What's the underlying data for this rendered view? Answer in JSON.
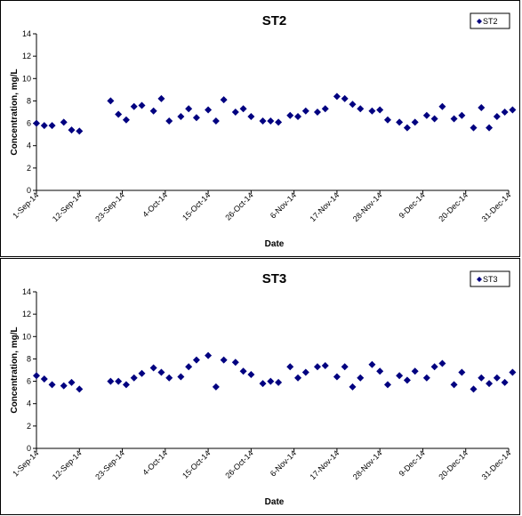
{
  "chart_data": [
    {
      "type": "scatter",
      "title": "ST2",
      "xlabel": "Date",
      "ylabel": "Concentration, mg/L",
      "x_tick_labels": [
        "1-Sep-14",
        "12-Sep-14",
        "23-Sep-14",
        "4-Oct-14",
        "15-Oct-14",
        "26-Oct-14",
        "6-Nov-14",
        "17-Nov-14",
        "28-Nov-14",
        "9-Dec-14",
        "20-Dec-14",
        "31-Dec-14"
      ],
      "xlim": [
        "2014-09-01",
        "2014-12-31"
      ],
      "ylim": [
        0,
        14
      ],
      "y_ticks": [
        0,
        2,
        4,
        6,
        8,
        10,
        12,
        14
      ],
      "legend_position": "top-right",
      "grid": false,
      "series": [
        {
          "name": "ST2",
          "color": "#000080",
          "marker": "diamond",
          "points": [
            {
              "x": "2014-09-01",
              "y": 6.0
            },
            {
              "x": "2014-09-03",
              "y": 5.8
            },
            {
              "x": "2014-09-05",
              "y": 5.8
            },
            {
              "x": "2014-09-08",
              "y": 6.1
            },
            {
              "x": "2014-09-10",
              "y": 5.4
            },
            {
              "x": "2014-09-12",
              "y": 5.3
            },
            {
              "x": "2014-09-20",
              "y": 8.0
            },
            {
              "x": "2014-09-22",
              "y": 6.8
            },
            {
              "x": "2014-09-24",
              "y": 6.3
            },
            {
              "x": "2014-09-26",
              "y": 7.5
            },
            {
              "x": "2014-09-28",
              "y": 7.6
            },
            {
              "x": "2014-10-01",
              "y": 7.1
            },
            {
              "x": "2014-10-03",
              "y": 8.2
            },
            {
              "x": "2014-10-05",
              "y": 6.2
            },
            {
              "x": "2014-10-08",
              "y": 6.6
            },
            {
              "x": "2014-10-10",
              "y": 7.3
            },
            {
              "x": "2014-10-12",
              "y": 6.5
            },
            {
              "x": "2014-10-15",
              "y": 7.2
            },
            {
              "x": "2014-10-17",
              "y": 6.2
            },
            {
              "x": "2014-10-19",
              "y": 8.1
            },
            {
              "x": "2014-10-22",
              "y": 7.0
            },
            {
              "x": "2014-10-24",
              "y": 7.3
            },
            {
              "x": "2014-10-26",
              "y": 6.6
            },
            {
              "x": "2014-10-29",
              "y": 6.2
            },
            {
              "x": "2014-10-31",
              "y": 6.2
            },
            {
              "x": "2014-11-02",
              "y": 6.1
            },
            {
              "x": "2014-11-05",
              "y": 6.7
            },
            {
              "x": "2014-11-07",
              "y": 6.6
            },
            {
              "x": "2014-11-09",
              "y": 7.1
            },
            {
              "x": "2014-11-12",
              "y": 7.0
            },
            {
              "x": "2014-11-14",
              "y": 7.3
            },
            {
              "x": "2014-11-17",
              "y": 8.4
            },
            {
              "x": "2014-11-19",
              "y": 8.2
            },
            {
              "x": "2014-11-21",
              "y": 7.7
            },
            {
              "x": "2014-11-23",
              "y": 7.3
            },
            {
              "x": "2014-11-26",
              "y": 7.1
            },
            {
              "x": "2014-11-28",
              "y": 7.2
            },
            {
              "x": "2014-11-30",
              "y": 6.3
            },
            {
              "x": "2014-12-03",
              "y": 6.1
            },
            {
              "x": "2014-12-05",
              "y": 5.6
            },
            {
              "x": "2014-12-07",
              "y": 6.1
            },
            {
              "x": "2014-12-10",
              "y": 6.7
            },
            {
              "x": "2014-12-12",
              "y": 6.4
            },
            {
              "x": "2014-12-14",
              "y": 7.5
            },
            {
              "x": "2014-12-17",
              "y": 6.4
            },
            {
              "x": "2014-12-19",
              "y": 6.7
            },
            {
              "x": "2014-12-22",
              "y": 5.6
            },
            {
              "x": "2014-12-24",
              "y": 7.4
            },
            {
              "x": "2014-12-26",
              "y": 5.6
            },
            {
              "x": "2014-12-28",
              "y": 6.6
            },
            {
              "x": "2014-12-30",
              "y": 7.0
            },
            {
              "x": "2015-01-01",
              "y": 7.2
            }
          ]
        }
      ]
    },
    {
      "type": "scatter",
      "title": "ST3",
      "xlabel": "Date",
      "ylabel": "Concentration, mg/L",
      "x_tick_labels": [
        "1-Sep-14",
        "12-Sep-14",
        "23-Sep-14",
        "4-Oct-14",
        "15-Oct-14",
        "26-Oct-14",
        "6-Nov-14",
        "17-Nov-14",
        "28-Nov-14",
        "9-Dec-14",
        "20-Dec-14",
        "31-Dec-14"
      ],
      "xlim": [
        "2014-09-01",
        "2014-12-31"
      ],
      "ylim": [
        0,
        14
      ],
      "y_ticks": [
        0,
        2,
        4,
        6,
        8,
        10,
        12,
        14
      ],
      "legend_position": "top-right",
      "grid": false,
      "series": [
        {
          "name": "ST3",
          "color": "#000080",
          "marker": "diamond",
          "points": [
            {
              "x": "2014-09-01",
              "y": 6.5
            },
            {
              "x": "2014-09-03",
              "y": 6.2
            },
            {
              "x": "2014-09-05",
              "y": 5.7
            },
            {
              "x": "2014-09-08",
              "y": 5.6
            },
            {
              "x": "2014-09-10",
              "y": 5.9
            },
            {
              "x": "2014-09-12",
              "y": 5.3
            },
            {
              "x": "2014-09-20",
              "y": 6.0
            },
            {
              "x": "2014-09-22",
              "y": 6.0
            },
            {
              "x": "2014-09-24",
              "y": 5.7
            },
            {
              "x": "2014-09-26",
              "y": 6.3
            },
            {
              "x": "2014-09-28",
              "y": 6.7
            },
            {
              "x": "2014-10-01",
              "y": 7.2
            },
            {
              "x": "2014-10-03",
              "y": 6.8
            },
            {
              "x": "2014-10-05",
              "y": 6.3
            },
            {
              "x": "2014-10-08",
              "y": 6.4
            },
            {
              "x": "2014-10-10",
              "y": 7.3
            },
            {
              "x": "2014-10-12",
              "y": 7.9
            },
            {
              "x": "2014-10-15",
              "y": 8.3
            },
            {
              "x": "2014-10-17",
              "y": 5.5
            },
            {
              "x": "2014-10-19",
              "y": 7.9
            },
            {
              "x": "2014-10-22",
              "y": 7.7
            },
            {
              "x": "2014-10-24",
              "y": 6.9
            },
            {
              "x": "2014-10-26",
              "y": 6.6
            },
            {
              "x": "2014-10-29",
              "y": 5.8
            },
            {
              "x": "2014-10-31",
              "y": 6.0
            },
            {
              "x": "2014-11-02",
              "y": 5.9
            },
            {
              "x": "2014-11-05",
              "y": 7.3
            },
            {
              "x": "2014-11-07",
              "y": 6.3
            },
            {
              "x": "2014-11-09",
              "y": 6.8
            },
            {
              "x": "2014-11-12",
              "y": 7.3
            },
            {
              "x": "2014-11-14",
              "y": 7.4
            },
            {
              "x": "2014-11-17",
              "y": 6.4
            },
            {
              "x": "2014-11-19",
              "y": 7.3
            },
            {
              "x": "2014-11-21",
              "y": 5.5
            },
            {
              "x": "2014-11-23",
              "y": 6.3
            },
            {
              "x": "2014-11-26",
              "y": 7.5
            },
            {
              "x": "2014-11-28",
              "y": 6.9
            },
            {
              "x": "2014-11-30",
              "y": 5.7
            },
            {
              "x": "2014-12-03",
              "y": 6.5
            },
            {
              "x": "2014-12-05",
              "y": 6.1
            },
            {
              "x": "2014-12-07",
              "y": 6.9
            },
            {
              "x": "2014-12-10",
              "y": 6.3
            },
            {
              "x": "2014-12-12",
              "y": 7.3
            },
            {
              "x": "2014-12-14",
              "y": 7.6
            },
            {
              "x": "2014-12-17",
              "y": 5.7
            },
            {
              "x": "2014-12-19",
              "y": 6.8
            },
            {
              "x": "2014-12-22",
              "y": 5.3
            },
            {
              "x": "2014-12-24",
              "y": 6.3
            },
            {
              "x": "2014-12-26",
              "y": 5.8
            },
            {
              "x": "2014-12-28",
              "y": 6.3
            },
            {
              "x": "2014-12-30",
              "y": 5.9
            },
            {
              "x": "2015-01-01",
              "y": 6.8
            }
          ]
        }
      ]
    }
  ]
}
